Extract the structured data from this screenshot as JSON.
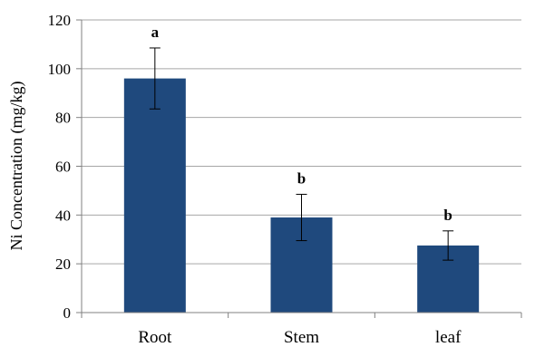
{
  "chart_data": {
    "type": "bar",
    "title": "",
    "xlabel": "",
    "ylabel": "Ni Concentration (mg/kg)",
    "categories": [
      "Root",
      "Stem",
      "leaf"
    ],
    "values": [
      96,
      39,
      27.5
    ],
    "error": [
      12.5,
      9.5,
      6
    ],
    "significance": [
      "a",
      "b",
      "b"
    ],
    "ylim": [
      0,
      120
    ],
    "yticks": [
      "0",
      "20",
      "40",
      "60",
      "80",
      "100",
      "120"
    ],
    "grid": true,
    "legend": "none",
    "bar_color": "#1f497d",
    "grid_color": "#a6a6a6"
  }
}
